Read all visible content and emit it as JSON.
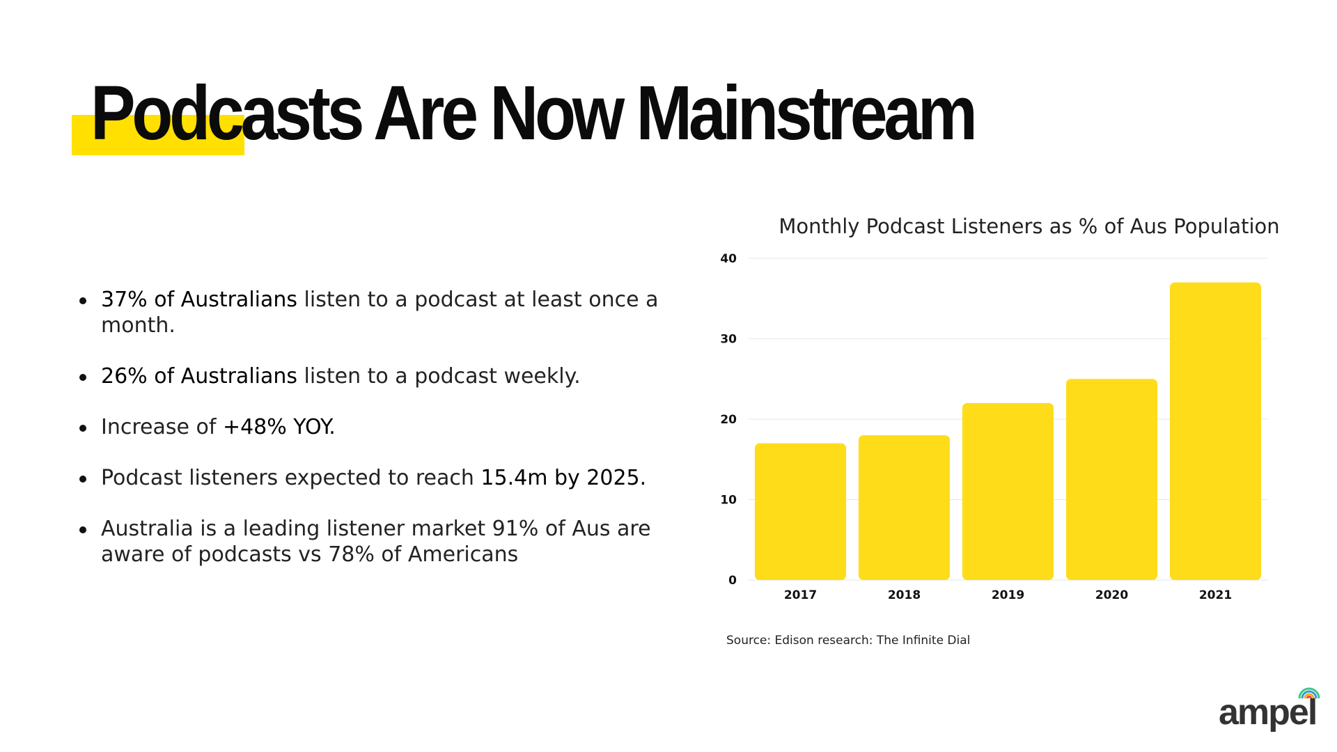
{
  "slide": {
    "title": "Podcasts Are Now Mainstream",
    "accent_color": "#ffe000"
  },
  "bullets": [
    {
      "strong": "37% of Australians",
      "rest": " listen to a podcast at least once a month."
    },
    {
      "strong": "26% of Australians",
      "rest": " listen to a podcast weekly."
    },
    {
      "pre": "Increase of ",
      "strong": "+48% YOY."
    },
    {
      "pre": "Podcast listeners expected to reach ",
      "strong": "15.4m by 2025."
    },
    {
      "pre": "Australia is a leading listener market 91% of Aus are aware of podcasts vs 78% of Americans"
    }
  ],
  "chart_data": {
    "type": "bar",
    "title": "Monthly Podcast Listeners as % of Aus Population",
    "categories": [
      "2017",
      "2018",
      "2019",
      "2020",
      "2021"
    ],
    "values": [
      17,
      18,
      22,
      25,
      37
    ],
    "ylim": [
      0,
      40
    ],
    "yticks": [
      "0",
      "10",
      "20",
      "30",
      "40"
    ],
    "xlabel": "",
    "ylabel": "",
    "grid": true,
    "bar_color": "#ffdc1a"
  },
  "source": "Source: Edison research: The Infinite Dial",
  "logo": {
    "text": "ampel",
    "icon": "broadcast-signal-icon"
  }
}
